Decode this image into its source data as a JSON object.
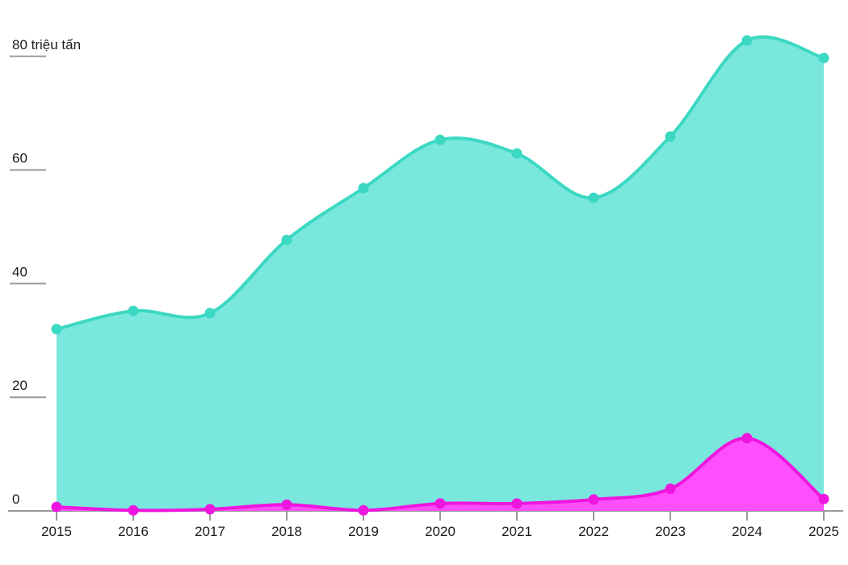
{
  "chart_data": {
    "type": "area",
    "title": "",
    "xlabel": "",
    "ylabel": "triệu tấn",
    "categories": [
      2015,
      2016,
      2017,
      2018,
      2019,
      2020,
      2021,
      2022,
      2023,
      2024,
      2025
    ],
    "series": [
      {
        "name": "teal-series",
        "fill": "#7AE7DE",
        "stroke": "#3BD8C2",
        "values": [
          32.0,
          35.2,
          34.8,
          47.7,
          56.8,
          65.3,
          62.9,
          55.1,
          65.9,
          82.8,
          79.7
        ]
      },
      {
        "name": "magenta-series",
        "fill": "#FD4FFD",
        "stroke": "#EE15DE",
        "values": [
          0.7,
          0.1,
          0.3,
          1.1,
          0.1,
          1.3,
          1.3,
          2.0,
          3.9,
          12.8,
          2.1
        ]
      }
    ],
    "y_ticks": [
      {
        "value": 0,
        "label": "0"
      },
      {
        "value": 20,
        "label": "20"
      },
      {
        "value": 40,
        "label": "40"
      },
      {
        "value": 60,
        "label": "60"
      },
      {
        "value": 80,
        "label": "80 triệu tấn"
      }
    ],
    "ylim": [
      0,
      85
    ],
    "grid": "off",
    "legend": "none",
    "axis_color": "#9a9a9a",
    "label_color": "#1c1c1c"
  }
}
